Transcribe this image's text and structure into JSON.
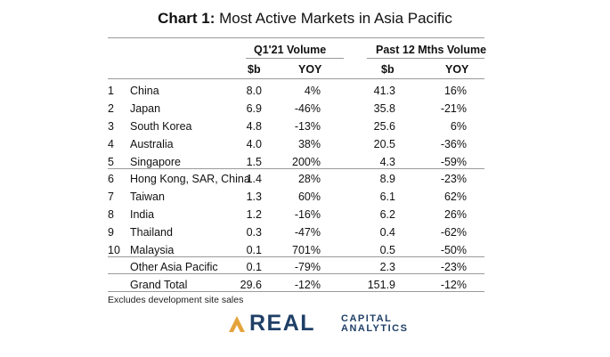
{
  "title": {
    "prefix": "Chart 1:",
    "text": "Most Active Markets in Asia Pacific"
  },
  "table": {
    "groups": [
      "Q1'21 Volume",
      "Past 12 Mths Volume"
    ],
    "columns": [
      "$b",
      "YOY",
      "$b",
      "YOY"
    ],
    "rows": [
      {
        "rank": "1",
        "market": "China",
        "q1_b": "8.0",
        "q1_yoy": "4%",
        "ttm_b": "41.3",
        "ttm_yoy": "16%"
      },
      {
        "rank": "2",
        "market": "Japan",
        "q1_b": "6.9",
        "q1_yoy": "-46%",
        "ttm_b": "35.8",
        "ttm_yoy": "-21%"
      },
      {
        "rank": "3",
        "market": "South Korea",
        "q1_b": "4.8",
        "q1_yoy": "-13%",
        "ttm_b": "25.6",
        "ttm_yoy": "6%"
      },
      {
        "rank": "4",
        "market": "Australia",
        "q1_b": "4.0",
        "q1_yoy": "38%",
        "ttm_b": "20.5",
        "ttm_yoy": "-36%"
      },
      {
        "rank": "5",
        "market": "Singapore",
        "q1_b": "1.5",
        "q1_yoy": "200%",
        "ttm_b": "4.3",
        "ttm_yoy": "-59%"
      },
      {
        "rank": "6",
        "market": "Hong Kong, SAR, China",
        "q1_b": "1.4",
        "q1_yoy": "28%",
        "ttm_b": "8.9",
        "ttm_yoy": "-23%"
      },
      {
        "rank": "7",
        "market": "Taiwan",
        "q1_b": "1.3",
        "q1_yoy": "60%",
        "ttm_b": "6.1",
        "ttm_yoy": "62%"
      },
      {
        "rank": "8",
        "market": "India",
        "q1_b": "1.2",
        "q1_yoy": "-16%",
        "ttm_b": "6.2",
        "ttm_yoy": "26%"
      },
      {
        "rank": "9",
        "market": "Thailand",
        "q1_b": "0.3",
        "q1_yoy": "-47%",
        "ttm_b": "0.4",
        "ttm_yoy": "-62%"
      },
      {
        "rank": "10",
        "market": "Malaysia",
        "q1_b": "0.1",
        "q1_yoy": "701%",
        "ttm_b": "0.5",
        "ttm_yoy": "-50%"
      },
      {
        "rank": "",
        "market": "Other Asia Pacific",
        "q1_b": "0.1",
        "q1_yoy": "-79%",
        "ttm_b": "2.3",
        "ttm_yoy": "-23%"
      },
      {
        "rank": "",
        "market": "Grand Total",
        "q1_b": "29.6",
        "q1_yoy": "-12%",
        "ttm_b": "151.9",
        "ttm_yoy": "-12%"
      }
    ]
  },
  "footnote": "Excludes development site sales",
  "logo": {
    "word": "REAL",
    "sub_top": "CAPITAL",
    "sub_bottom": "ANALYTICS",
    "colors": {
      "navy": "#1f3f66",
      "gold": "#e5a33b"
    }
  }
}
